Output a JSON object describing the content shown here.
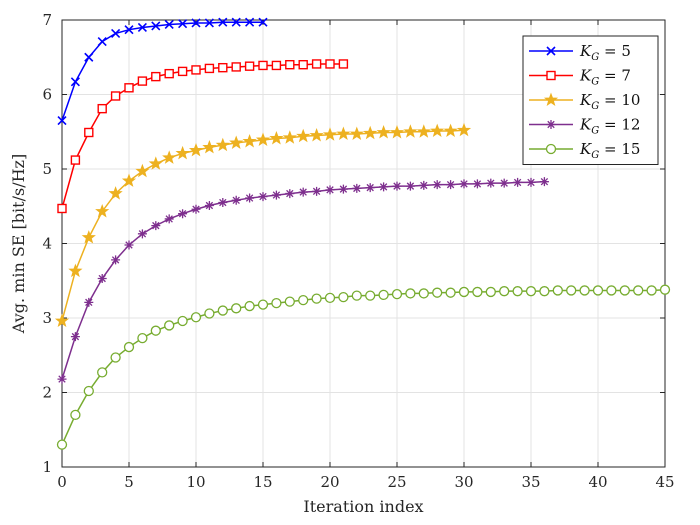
{
  "chart_data": {
    "type": "line",
    "title": "",
    "xlabel": "Iteration index",
    "ylabel": "Avg. min SE [bit/s/Hz]",
    "xlim": [
      0,
      45
    ],
    "ylim": [
      1,
      7
    ],
    "xticks": [
      0,
      5,
      10,
      15,
      20,
      25,
      30,
      35,
      40,
      45
    ],
    "yticks": [
      1,
      2,
      3,
      4,
      5,
      6,
      7
    ],
    "grid": true,
    "legend_position": "top-right",
    "series": [
      {
        "name": "K_G = 5",
        "legend_main": "K",
        "legend_sub": "G",
        "legend_rest": " = 5",
        "color": "#0000ff",
        "marker": "x",
        "values": [
          5.65,
          6.17,
          6.5,
          6.71,
          6.82,
          6.87,
          6.9,
          6.92,
          6.94,
          6.95,
          6.96,
          6.96,
          6.97,
          6.97,
          6.97,
          6.97
        ]
      },
      {
        "name": "K_G = 7",
        "legend_main": "K",
        "legend_sub": "G",
        "legend_rest": " = 7",
        "color": "#ff0000",
        "marker": "square",
        "values": [
          4.47,
          5.12,
          5.49,
          5.81,
          5.98,
          6.09,
          6.18,
          6.24,
          6.28,
          6.31,
          6.33,
          6.35,
          6.36,
          6.37,
          6.38,
          6.39,
          6.39,
          6.4,
          6.4,
          6.41,
          6.41,
          6.41
        ]
      },
      {
        "name": "K_G = 10",
        "legend_main": "K",
        "legend_sub": "G",
        "legend_rest": " = 10",
        "color": "#edb120",
        "marker": "star",
        "values": [
          2.96,
          3.63,
          4.08,
          4.43,
          4.67,
          4.84,
          4.97,
          5.07,
          5.15,
          5.21,
          5.25,
          5.29,
          5.32,
          5.35,
          5.37,
          5.39,
          5.41,
          5.42,
          5.44,
          5.45,
          5.46,
          5.47,
          5.47,
          5.48,
          5.49,
          5.49,
          5.5,
          5.5,
          5.51,
          5.51,
          5.52
        ]
      },
      {
        "name": "K_G = 12",
        "legend_main": "K",
        "legend_sub": "G",
        "legend_rest": " = 12",
        "color": "#7e2f8e",
        "marker": "asterisk",
        "values": [
          2.18,
          2.75,
          3.21,
          3.53,
          3.78,
          3.98,
          4.13,
          4.24,
          4.33,
          4.4,
          4.46,
          4.51,
          4.55,
          4.58,
          4.61,
          4.63,
          4.65,
          4.67,
          4.69,
          4.7,
          4.72,
          4.73,
          4.74,
          4.75,
          4.76,
          4.77,
          4.77,
          4.78,
          4.79,
          4.79,
          4.8,
          4.8,
          4.81,
          4.81,
          4.82,
          4.82,
          4.83
        ]
      },
      {
        "name": "K_G = 15",
        "legend_main": "K",
        "legend_sub": "G",
        "legend_rest": " = 15",
        "color": "#77ac30",
        "marker": "circle",
        "values": [
          1.3,
          1.7,
          2.02,
          2.27,
          2.47,
          2.61,
          2.73,
          2.83,
          2.9,
          2.96,
          3.01,
          3.06,
          3.1,
          3.13,
          3.16,
          3.18,
          3.2,
          3.22,
          3.24,
          3.26,
          3.27,
          3.28,
          3.3,
          3.3,
          3.31,
          3.32,
          3.33,
          3.33,
          3.34,
          3.34,
          3.35,
          3.35,
          3.35,
          3.36,
          3.36,
          3.36,
          3.36,
          3.37,
          3.37,
          3.37,
          3.37,
          3.37,
          3.37,
          3.37,
          3.37,
          3.38
        ]
      }
    ]
  }
}
